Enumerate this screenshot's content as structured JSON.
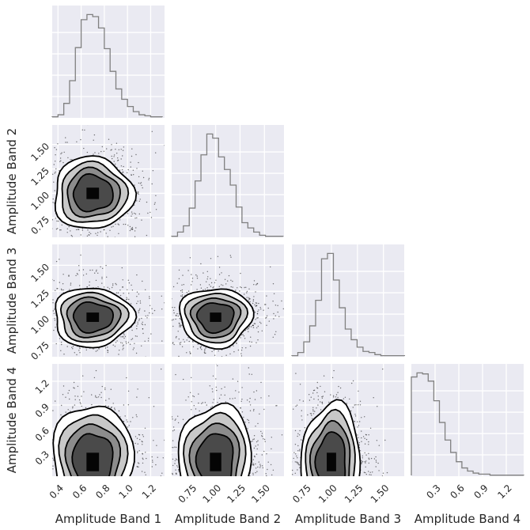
{
  "chart_data": {
    "type": "corner",
    "title": "",
    "parameters": [
      "Amplitude Band 1",
      "Amplitude Band 2",
      "Amplitude Band 3",
      "Amplitude Band 4"
    ],
    "axis_labels": [
      "Amplitude Band 1",
      "Amplitude Band 2",
      "Amplitude Band 3",
      "Amplitude Band 4"
    ],
    "ranges": [
      [
        0.35,
        1.32
      ],
      [
        0.55,
        1.7
      ],
      [
        0.62,
        1.7
      ],
      [
        0.0,
        1.42
      ]
    ],
    "ticks": [
      [
        0.4,
        0.6,
        0.8,
        1.0,
        1.2
      ],
      [
        0.75,
        1.0,
        1.25,
        1.5
      ],
      [
        0.75,
        1.0,
        1.25,
        1.5
      ],
      [
        0.3,
        0.6,
        0.9,
        1.2
      ]
    ],
    "tick_labels": [
      [
        "0.4",
        "0.6",
        "0.8",
        "1.0",
        "1.2"
      ],
      [
        "0.75",
        "1.00",
        "1.25",
        "1.50"
      ],
      [
        "0.75",
        "1.00",
        "1.25",
        "1.50"
      ],
      [
        "0.3",
        "0.6",
        "0.9",
        "1.2"
      ]
    ],
    "histograms": [
      {
        "parameter": "Amplitude Band 1",
        "bin_edges": [
          0.35,
          0.4,
          0.45,
          0.5,
          0.55,
          0.6,
          0.65,
          0.7,
          0.75,
          0.8,
          0.85,
          0.9,
          0.95,
          1.0,
          1.05,
          1.1,
          1.15,
          1.2,
          1.25,
          1.3
        ],
        "counts": [
          1,
          3,
          14,
          36,
          68,
          95,
          100,
          98,
          87,
          67,
          45,
          28,
          18,
          11,
          6,
          3,
          2,
          1,
          1
        ]
      },
      {
        "parameter": "Amplitude Band 2",
        "bin_edges": [
          0.55,
          0.61,
          0.67,
          0.73,
          0.79,
          0.85,
          0.91,
          0.97,
          1.03,
          1.09,
          1.15,
          1.21,
          1.27,
          1.33,
          1.39,
          1.45,
          1.51,
          1.57,
          1.63,
          1.69
        ],
        "counts": [
          1,
          5,
          11,
          28,
          54,
          79,
          99,
          95,
          77,
          65,
          50,
          29,
          14,
          9,
          5,
          2,
          1,
          1,
          1
        ]
      },
      {
        "parameter": "Amplitude Band 3",
        "bin_edges": [
          0.62,
          0.677,
          0.734,
          0.791,
          0.848,
          0.905,
          0.962,
          1.019,
          1.076,
          1.133,
          1.19,
          1.247,
          1.304,
          1.361,
          1.418,
          1.475,
          1.532,
          1.589,
          1.646,
          1.703
        ],
        "counts": [
          1,
          4,
          14,
          29,
          53,
          92,
          97,
          72,
          46,
          26,
          16,
          9,
          5,
          4,
          2,
          1,
          1,
          1,
          1
        ]
      },
      {
        "parameter": "Amplitude Band 4",
        "bin_edges": [
          0.0,
          0.071,
          0.142,
          0.213,
          0.284,
          0.355,
          0.426,
          0.497,
          0.568,
          0.639,
          0.71,
          0.781,
          0.852,
          0.923,
          0.994,
          1.065,
          1.136,
          1.207,
          1.278,
          1.349,
          1.42
        ],
        "counts": [
          96,
          100,
          99,
          92,
          73,
          52,
          35,
          23,
          14,
          8,
          5,
          3,
          2,
          2,
          1,
          1,
          1,
          1,
          1,
          1
        ]
      }
    ],
    "joint_distributions": [
      {
        "x": "Amplitude Band 1",
        "y": "Amplitude Band 2",
        "mean_x": 0.7,
        "mean_y": 1.0,
        "sd_x": 0.12,
        "sd_y": 0.13
      },
      {
        "x": "Amplitude Band 1",
        "y": "Amplitude Band 3",
        "mean_x": 0.7,
        "mean_y": 1.0,
        "sd_x": 0.12,
        "sd_y": 0.1
      },
      {
        "x": "Amplitude Band 2",
        "y": "Amplitude Band 3",
        "mean_x": 1.0,
        "mean_y": 1.0,
        "sd_x": 0.13,
        "sd_y": 0.1
      },
      {
        "x": "Amplitude Band 1",
        "y": "Amplitude Band 4",
        "mean_x": 0.7,
        "mean_y": 0.15,
        "sd_x": 0.12,
        "sd_y": 0.16
      },
      {
        "x": "Amplitude Band 2",
        "y": "Amplitude Band 4",
        "mean_x": 1.0,
        "mean_y": 0.15,
        "sd_x": 0.13,
        "sd_y": 0.16
      },
      {
        "x": "Amplitude Band 3",
        "y": "Amplitude Band 4",
        "mean_x": 1.0,
        "mean_y": 0.15,
        "sd_x": 0.1,
        "sd_y": 0.16
      }
    ],
    "contour_levels_sigma": [
      0.5,
      1.0,
      1.5,
      2.0
    ],
    "grid": true,
    "colors": {
      "panel_background": "#EAEAF2",
      "grid": "#FFFFFF",
      "histogram_line": "#808080",
      "contour": "#000000",
      "points": "#000000",
      "text": "#262626"
    }
  }
}
